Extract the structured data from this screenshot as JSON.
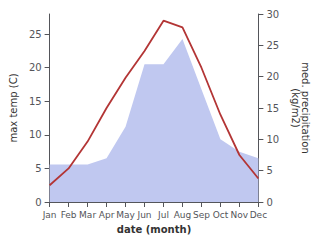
{
  "chart_data": {
    "type": "line",
    "categories": [
      "Jan",
      "Feb",
      "Mar",
      "Apr",
      "May",
      "Jun",
      "Jul",
      "Aug",
      "Sep",
      "Oct",
      "Nov",
      "Dec"
    ],
    "series": [
      {
        "type": "area",
        "color": "#c0c8f0",
        "axis": "y2",
        "values": [
          6.0,
          6.0,
          6.0,
          7.0,
          12.0,
          22.0,
          22.0,
          26.0,
          18.0,
          10.0,
          8.0,
          7.0
        ]
      },
      {
        "type": "line",
        "color": "#b33535",
        "values": [
          2.5,
          5.0,
          9.0,
          14.0,
          18.5,
          22.5,
          27.0,
          26.0,
          20.0,
          13.0,
          7.0,
          3.5
        ]
      }
    ],
    "xlabel": "date (month)",
    "ylabel": "max temp (C)",
    "y2label": "med. precipitation\n(kg/m2)",
    "ylim": [
      0,
      28
    ],
    "yticks": [
      0,
      5,
      10,
      15,
      20,
      25
    ],
    "y2lim": [
      0,
      30
    ],
    "y2ticks": [
      0,
      5,
      10,
      15,
      20,
      25,
      30
    ],
    "grid": false
  }
}
